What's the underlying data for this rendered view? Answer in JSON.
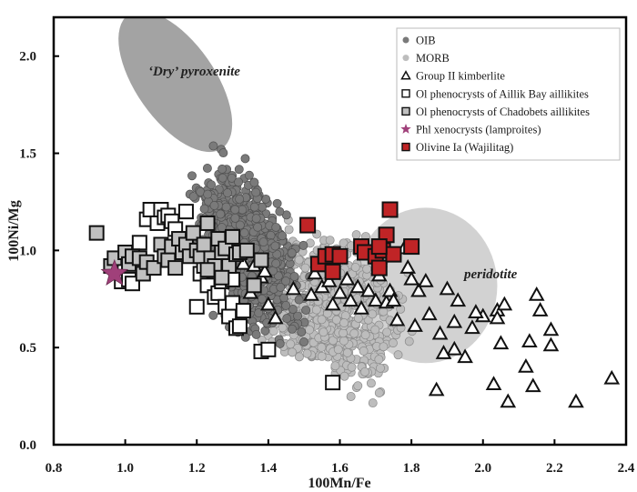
{
  "chart_data": {
    "type": "scatter",
    "title": "",
    "xlabel": "100Mn/Fe",
    "ylabel": "100Ni/Mg",
    "xlim": [
      0.8,
      2.4
    ],
    "ylim": [
      0.0,
      2.2
    ],
    "xticks": [
      "0.8",
      "1.0",
      "1.2",
      "1.4",
      "1.6",
      "1.8",
      "2.0",
      "2.2",
      "2.4"
    ],
    "yticks": [
      "0.0",
      "0.5",
      "1.0",
      "1.5",
      "2.0"
    ],
    "grid": false,
    "legend_position": "top-right",
    "colors": {
      "oib": "#7a7a7a",
      "morb": "#bdbdbd",
      "field_pyroxenite": "#a3a3a3",
      "field_peridotite": "#d2d2d2",
      "chadobets": "#c0c0c0",
      "star": "#a0407a",
      "olivine": "#c02426"
    },
    "fields": [
      {
        "name": "'Dry' pyroxenite",
        "label": "‘Dry’ pyroxenite",
        "center": [
          1.14,
          1.87
        ],
        "semi_axes": [
          0.11,
          0.42
        ],
        "angle_deg": -35
      },
      {
        "name": "peridotite",
        "label": "peridotite",
        "center": [
          1.84,
          0.82
        ],
        "semi_axes": [
          0.2,
          0.4
        ],
        "angle_deg": 0
      }
    ],
    "series": [
      {
        "name": "OIB",
        "label": "OIB",
        "marker": "circle",
        "cloud": {
          "x_range": [
            1.18,
            1.58
          ],
          "y_range": [
            0.45,
            1.6
          ],
          "center": [
            1.34,
            1.0
          ],
          "count": 900
        }
      },
      {
        "name": "MORB",
        "label": "MORB",
        "marker": "circle",
        "cloud": {
          "x_range": [
            1.38,
            1.86
          ],
          "y_range": [
            0.2,
            1.2
          ],
          "center": [
            1.58,
            0.68
          ],
          "count": 700
        }
      },
      {
        "name": "Group II kimberlite",
        "label": "Group II kimberlite",
        "marker": "triangle",
        "x": [
          1.25,
          1.33,
          1.35,
          1.36,
          1.38,
          1.39,
          1.4,
          1.42,
          1.47,
          1.52,
          1.53,
          1.55,
          1.57,
          1.58,
          1.6,
          1.62,
          1.63,
          1.65,
          1.66,
          1.68,
          1.7,
          1.71,
          1.73,
          1.74,
          1.75,
          1.76,
          1.78,
          1.79,
          1.8,
          1.81,
          1.82,
          1.85,
          1.87,
          1.88,
          1.9,
          1.92,
          1.92,
          1.93,
          1.95,
          1.97,
          2.0,
          2.03,
          2.04,
          2.05,
          2.06,
          2.07,
          2.12,
          2.13,
          2.14,
          2.15,
          2.16,
          2.19,
          2.19,
          2.26,
          2.36,
          1.84,
          1.89,
          1.98,
          2.04
        ],
        "y": [
          0.88,
          0.93,
          0.78,
          0.92,
          0.86,
          0.89,
          0.72,
          0.65,
          0.8,
          0.77,
          0.88,
          0.81,
          0.84,
          0.72,
          0.78,
          0.85,
          0.74,
          0.81,
          0.7,
          0.79,
          0.74,
          0.87,
          0.73,
          0.79,
          0.74,
          0.64,
          1.01,
          0.91,
          0.85,
          0.61,
          0.79,
          0.67,
          0.28,
          0.57,
          0.8,
          0.63,
          0.49,
          0.74,
          0.45,
          0.6,
          0.66,
          0.31,
          0.69,
          0.52,
          0.72,
          0.22,
          0.4,
          0.53,
          0.3,
          0.77,
          0.69,
          0.59,
          0.51,
          0.22,
          0.34,
          0.84,
          0.47,
          0.68,
          0.65
        ]
      },
      {
        "name": "Ol phenocrysts of Aillik Bay aillikites",
        "label": "Ol phenocrysts of Aillik Bay aillikites",
        "marker": "square-open",
        "x": [
          0.99,
          1.01,
          1.02,
          1.04,
          1.06,
          1.07,
          1.09,
          1.1,
          1.11,
          1.12,
          1.13,
          1.14,
          1.17,
          1.2,
          1.21,
          1.22,
          1.23,
          1.25,
          1.26,
          1.27,
          1.28,
          1.29,
          1.3,
          1.31,
          1.32,
          1.33,
          1.38,
          1.4,
          1.58,
          1.3,
          1.26
        ],
        "y": [
          0.84,
          0.85,
          0.83,
          1.04,
          1.16,
          1.21,
          1.14,
          1.21,
          1.17,
          1.18,
          1.15,
          1.11,
          1.2,
          0.71,
          0.88,
          0.92,
          0.82,
          0.76,
          0.78,
          0.84,
          0.71,
          0.66,
          0.73,
          0.6,
          0.61,
          0.69,
          0.48,
          0.49,
          0.32,
          0.85,
          0.93
        ]
      },
      {
        "name": "Ol phenocrysts of Chadobets aillikites",
        "label": "Ol phenocrysts of Chadobets aillikites",
        "marker": "square-gray",
        "x": [
          0.92,
          0.96,
          0.97,
          1.0,
          1.01,
          1.02,
          1.04,
          1.05,
          1.06,
          1.08,
          1.1,
          1.11,
          1.12,
          1.13,
          1.14,
          1.15,
          1.16,
          1.17,
          1.18,
          1.19,
          1.2,
          1.21,
          1.22,
          1.23,
          1.24,
          1.25,
          1.26,
          1.27,
          1.28,
          1.29,
          1.3,
          1.31,
          1.32,
          1.34,
          1.36,
          1.38,
          1.23,
          1.27
        ],
        "y": [
          1.09,
          0.92,
          0.96,
          0.99,
          0.93,
          0.97,
          0.96,
          0.88,
          0.94,
          0.91,
          1.03,
          0.97,
          0.95,
          1.02,
          0.91,
          1.06,
          0.99,
          1.03,
          0.97,
          1.09,
          1.0,
          0.97,
          1.03,
          1.14,
          0.96,
          0.92,
          1.06,
          0.99,
          1.01,
          0.92,
          1.07,
          0.98,
          0.99,
          1.0,
          0.82,
          0.95,
          0.9,
          0.86
        ]
      },
      {
        "name": "Phl xenocrysts (lamproites)",
        "label": "Phl xenocrysts (lamproites)",
        "marker": "star",
        "x": [
          0.97
        ],
        "y": [
          0.88
        ]
      },
      {
        "name": "Olivine Ia (Wajilitag)",
        "label": "Olivine Ia (Wajilitag)",
        "marker": "square-red",
        "x": [
          1.51,
          1.54,
          1.56,
          1.58,
          1.58,
          1.6,
          1.66,
          1.67,
          1.7,
          1.71,
          1.72,
          1.73,
          1.74,
          1.75,
          1.8,
          1.71
        ],
        "y": [
          1.13,
          0.93,
          0.97,
          0.89,
          0.98,
          0.97,
          1.02,
          0.99,
          0.97,
          0.91,
          1.0,
          1.08,
          1.21,
          0.98,
          1.02,
          1.02
        ]
      }
    ]
  }
}
